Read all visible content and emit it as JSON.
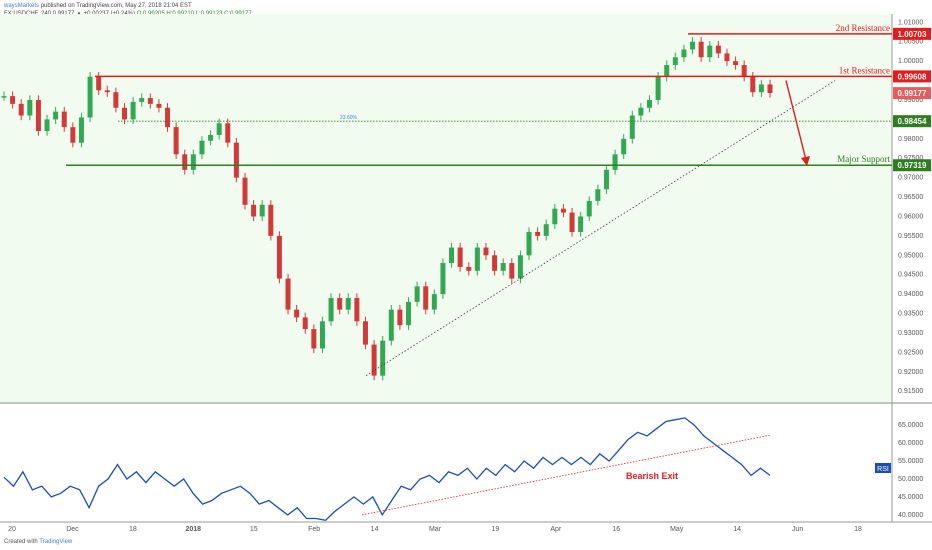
{
  "header": {
    "publisher": "waysMarkets",
    "published_text": "published on TradingView.com, May 27, 2018 21:04 EST",
    "symbol_line": "FX:USDCHF, 240  0.99177  ▲ +0.00237 (+0.24%)",
    "ohlc": "O:0.99205  H:0.99210  L:0.99123  C:0.99177"
  },
  "footer": {
    "created_with": "Created with",
    "brand": "TradingView"
  },
  "colors": {
    "price_area_bg": "#f1fbef",
    "resistance": "#e41c1c",
    "support": "#2e7d1f",
    "rsi_line": "#1a4fb0",
    "candle_up": "#33a852",
    "candle_down": "#d23a3a"
  },
  "annotations": {
    "second_resistance": "2nd Resistance",
    "first_resistance": "1st Resistance",
    "major_support": "Major Support",
    "fib_label": "23.60%",
    "bearish_exit": "Bearish Exit",
    "rsi_tag": "RSI"
  },
  "chart_data": [
    {
      "type": "candlestick",
      "title": "FX:USDCHF, 240",
      "y_axis_ticks": [
        "1.01000",
        "1.00500",
        "1.00000",
        "0.99500",
        "0.99000",
        "0.98500",
        "0.98000",
        "0.97500",
        "0.97000",
        "0.96500",
        "0.96000",
        "0.95500",
        "0.95000",
        "0.94500",
        "0.94000",
        "0.93500",
        "0.93000",
        "0.92500",
        "0.92000",
        "0.91500"
      ],
      "ylim": [
        0.9135,
        1.0106
      ],
      "x_axis_ticks": [
        "20",
        "Dec",
        "18",
        "2018",
        "15",
        "Feb",
        "14",
        "Mar",
        "19",
        "Apr",
        "16",
        "May",
        "14",
        "Jun",
        "18"
      ],
      "price_path": [
        [
          0,
          0.991
        ],
        [
          6,
          0.989
        ],
        [
          14,
          0.986
        ],
        [
          20,
          0.99
        ],
        [
          28,
          0.982
        ],
        [
          36,
          0.985
        ],
        [
          44,
          0.987
        ],
        [
          50,
          0.983
        ],
        [
          60,
          0.979
        ],
        [
          70,
          0.9855
        ],
        [
          79,
          0.996
        ],
        [
          88,
          0.9925
        ],
        [
          98,
          0.992
        ],
        [
          108,
          0.988
        ],
        [
          118,
          0.985
        ],
        [
          128,
          0.9895
        ],
        [
          140,
          0.9905
        ],
        [
          150,
          0.989
        ],
        [
          158,
          0.988
        ],
        [
          165,
          0.983
        ],
        [
          172,
          0.976
        ],
        [
          180,
          0.972
        ],
        [
          188,
          0.976
        ],
        [
          196,
          0.9795
        ],
        [
          204,
          0.981
        ],
        [
          212,
          0.984
        ],
        [
          218,
          0.979
        ],
        [
          226,
          0.97
        ],
        [
          236,
          0.963
        ],
        [
          246,
          0.96
        ],
        [
          256,
          0.963
        ],
        [
          264,
          0.955
        ],
        [
          272,
          0.944
        ],
        [
          280,
          0.936
        ],
        [
          290,
          0.934
        ],
        [
          298,
          0.931
        ],
        [
          306,
          0.926
        ],
        [
          314,
          0.933
        ],
        [
          322,
          0.939
        ],
        [
          330,
          0.936
        ],
        [
          340,
          0.939
        ],
        [
          348,
          0.933
        ],
        [
          356,
          0.927
        ],
        [
          364,
          0.919
        ],
        [
          372,
          0.928
        ],
        [
          382,
          0.936
        ],
        [
          392,
          0.932
        ],
        [
          402,
          0.938
        ],
        [
          412,
          0.942
        ],
        [
          422,
          0.936
        ],
        [
          430,
          0.94
        ],
        [
          440,
          0.948
        ],
        [
          448,
          0.952
        ],
        [
          456,
          0.947
        ],
        [
          466,
          0.946
        ],
        [
          476,
          0.952
        ],
        [
          486,
          0.95
        ],
        [
          496,
          0.946
        ],
        [
          506,
          0.948
        ],
        [
          514,
          0.944
        ],
        [
          522,
          0.95
        ],
        [
          530,
          0.956
        ],
        [
          540,
          0.955
        ],
        [
          550,
          0.958
        ],
        [
          560,
          0.962
        ],
        [
          568,
          0.961
        ],
        [
          576,
          0.956
        ],
        [
          584,
          0.96
        ],
        [
          594,
          0.964
        ],
        [
          604,
          0.967
        ],
        [
          614,
          0.972
        ],
        [
          622,
          0.976
        ],
        [
          630,
          0.98
        ],
        [
          640,
          0.986
        ],
        [
          648,
          0.988
        ],
        [
          656,
          0.99
        ],
        [
          664,
          0.996
        ],
        [
          672,
          0.999
        ],
        [
          680,
          1.001
        ],
        [
          688,
          1.003
        ],
        [
          696,
          1.005
        ],
        [
          706,
          1.001
        ],
        [
          714,
          1.004
        ],
        [
          722,
          1.002
        ],
        [
          730,
          1.0
        ],
        [
          738,
          0.999
        ],
        [
          746,
          0.996
        ],
        [
          752,
          0.992
        ],
        [
          758,
          0.994
        ],
        [
          766,
          0.9918
        ]
      ],
      "levels": [
        {
          "name": "2nd Resistance",
          "value": 1.00703,
          "color": "#e41c1c"
        },
        {
          "name": "1st Resistance",
          "value": 0.99608,
          "color": "#e41c1c"
        },
        {
          "name": "Fib 23.60%",
          "value": 0.98454,
          "color": "#2e7d1f"
        },
        {
          "name": "Major Support",
          "value": 0.97319,
          "color": "#2e7d1f"
        }
      ],
      "last_price": 0.99177,
      "trendline": [
        [
          0.919
        ],
        [
          0.995
        ]
      ],
      "projection": {
        "from": 0.995,
        "to": 0.973
      }
    },
    {
      "type": "line",
      "title": "RSI",
      "y_axis_ticks": [
        "65.0000",
        "60.0000",
        "55.0000",
        "50.0000",
        "45.0000",
        "40.0000"
      ],
      "ylim": [
        38.3,
        70.6
      ],
      "rsi_path": [
        [
          0,
          50.5
        ],
        [
          6,
          48
        ],
        [
          12,
          52
        ],
        [
          20,
          47
        ],
        [
          30,
          48
        ],
        [
          38,
          45
        ],
        [
          46,
          46
        ],
        [
          56,
          48
        ],
        [
          64,
          47
        ],
        [
          70,
          42
        ],
        [
          76,
          48
        ],
        [
          86,
          50
        ],
        [
          96,
          54
        ],
        [
          104,
          50
        ],
        [
          114,
          52
        ],
        [
          124,
          49
        ],
        [
          134,
          52
        ],
        [
          144,
          50
        ],
        [
          154,
          48
        ],
        [
          164,
          50
        ],
        [
          172,
          46
        ],
        [
          180,
          43
        ],
        [
          190,
          44
        ],
        [
          200,
          46
        ],
        [
          210,
          47
        ],
        [
          220,
          48
        ],
        [
          230,
          46
        ],
        [
          240,
          43
        ],
        [
          250,
          44
        ],
        [
          258,
          42
        ],
        [
          266,
          40
        ],
        [
          276,
          42
        ],
        [
          286,
          39
        ],
        [
          296,
          39
        ],
        [
          306,
          38.5
        ],
        [
          316,
          41
        ],
        [
          326,
          43
        ],
        [
          334,
          45
        ],
        [
          344,
          43
        ],
        [
          354,
          45
        ],
        [
          362,
          40
        ],
        [
          372,
          44
        ],
        [
          382,
          48
        ],
        [
          392,
          47
        ],
        [
          402,
          50
        ],
        [
          412,
          51
        ],
        [
          422,
          49
        ],
        [
          432,
          52
        ],
        [
          442,
          51
        ],
        [
          452,
          53
        ],
        [
          462,
          50
        ],
        [
          472,
          53
        ],
        [
          482,
          51
        ],
        [
          492,
          54
        ],
        [
          502,
          52
        ],
        [
          512,
          55
        ],
        [
          522,
          53
        ],
        [
          532,
          56
        ],
        [
          542,
          54
        ],
        [
          552,
          56
        ],
        [
          562,
          54
        ],
        [
          572,
          56
        ],
        [
          582,
          54
        ],
        [
          592,
          57
        ],
        [
          602,
          55
        ],
        [
          612,
          58
        ],
        [
          622,
          61
        ],
        [
          632,
          63
        ],
        [
          642,
          62
        ],
        [
          652,
          64
        ],
        [
          662,
          66
        ],
        [
          672,
          66.5
        ],
        [
          682,
          67
        ],
        [
          690,
          65
        ],
        [
          700,
          62
        ],
        [
          710,
          60
        ],
        [
          720,
          58
        ],
        [
          730,
          56
        ],
        [
          740,
          54
        ],
        [
          750,
          51
        ],
        [
          758,
          53
        ],
        [
          766,
          51
        ]
      ],
      "trendline": [
        [
          40.0
        ],
        [
          62.2
        ]
      ]
    }
  ]
}
